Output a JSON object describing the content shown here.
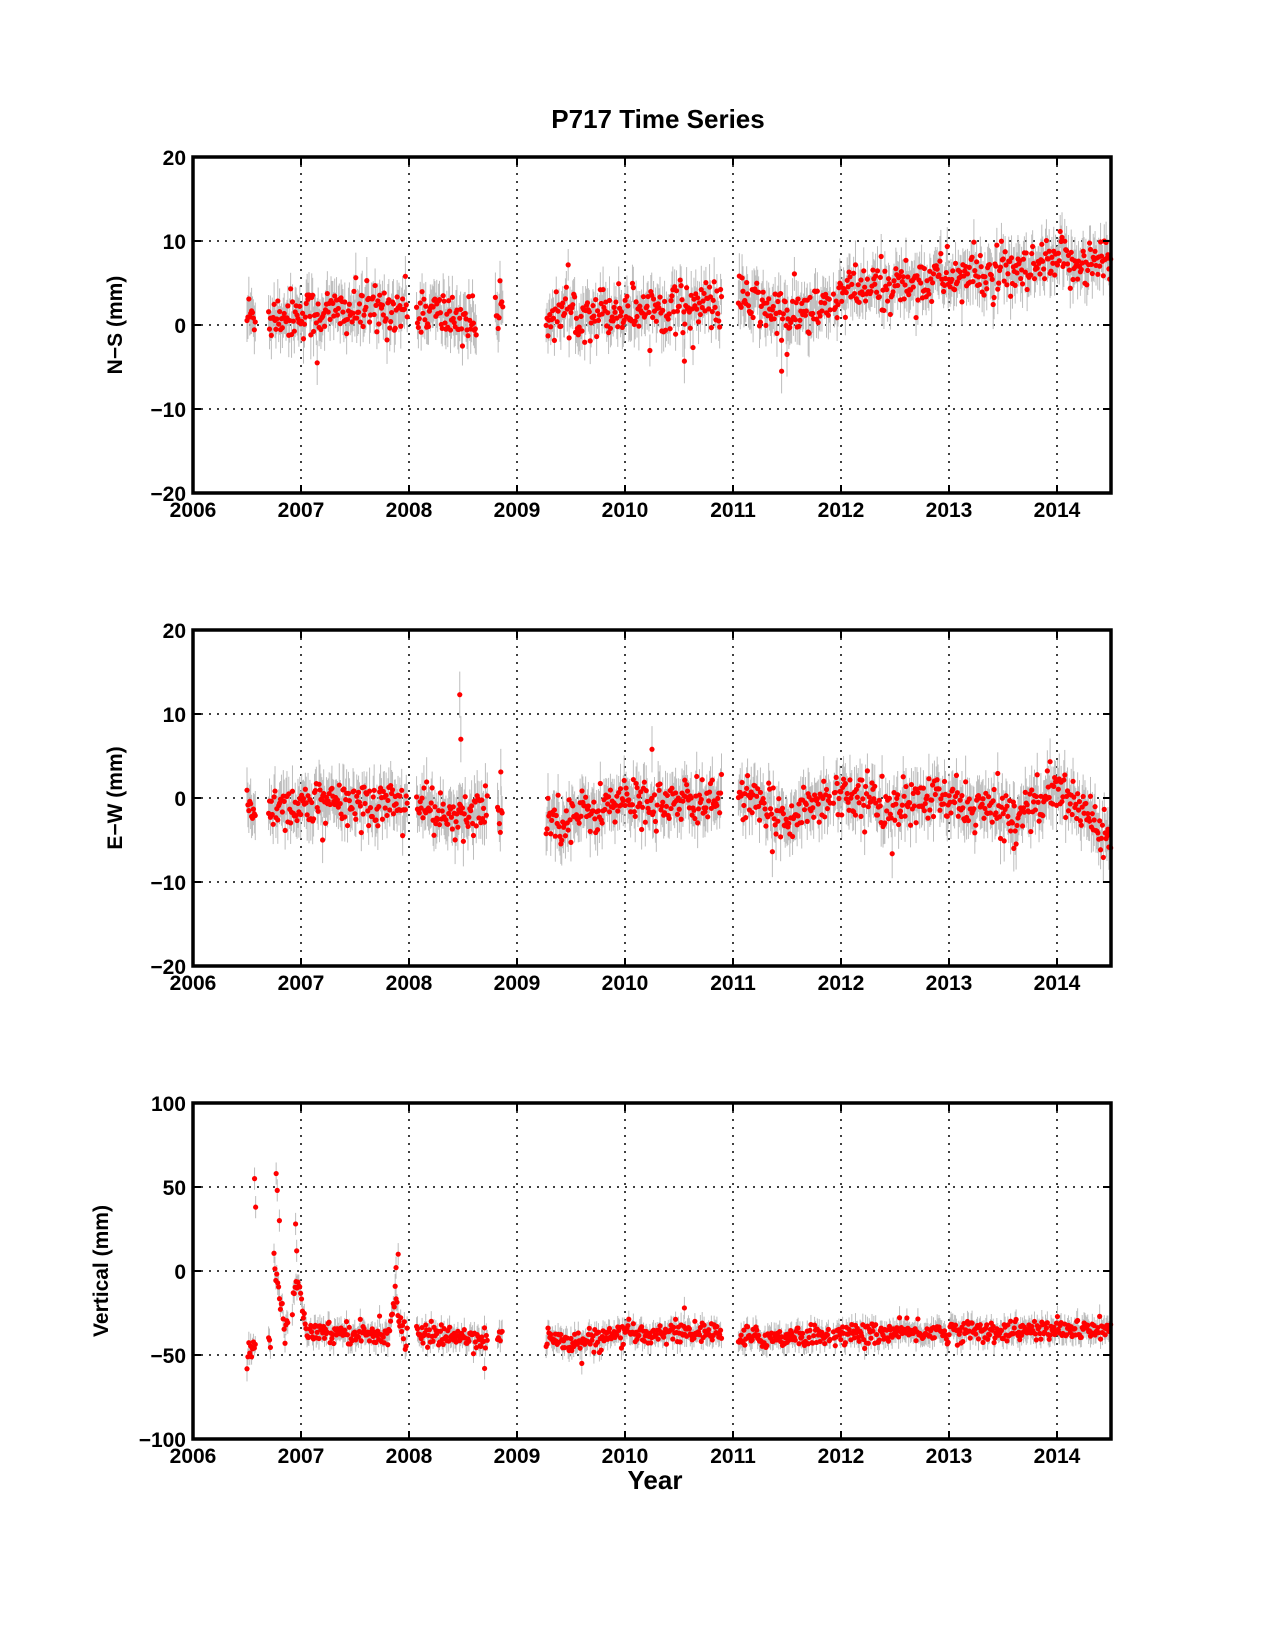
{
  "figure": {
    "title": "P717 Time Series",
    "xlabel": "Year",
    "colors": {
      "points": "#ff0000",
      "errorbars": "#bdbdbd",
      "axes": "#000000",
      "grid": "#000000"
    }
  },
  "chart_data": [
    {
      "type": "scatter",
      "title": "P717 Time Series",
      "xlabel": "",
      "ylabel": "N−S (mm)",
      "xlim": [
        2006,
        2014.5
      ],
      "ylim": [
        -20,
        20
      ],
      "xticks": [
        "2006",
        "2007",
        "2008",
        "2009",
        "2010",
        "2011",
        "2012",
        "2013",
        "2014"
      ],
      "yticks": [
        "−20",
        "−10",
        "0",
        "10",
        "20"
      ],
      "grid": true,
      "error_bars": true,
      "series": [
        {
          "segments": [
            [
              2006.5,
              2006.58
            ],
            [
              2006.7,
              2007.99
            ],
            [
              2008.07,
              2008.63
            ],
            [
              2008.8,
              2008.87
            ],
            [
              2009.27,
              2010.9
            ],
            [
              2011.05,
              2011.9
            ],
            [
              2011.93,
              2014.5
            ]
          ],
          "trend": [
            [
              2006.5,
              1.0
            ],
            [
              2008.0,
              2.0
            ],
            [
              2008.6,
              0.5
            ],
            [
              2009.3,
              1.3
            ],
            [
              2010.0,
              1.9
            ],
            [
              2010.9,
              2.5
            ],
            [
              2011.1,
              3.0
            ],
            [
              2011.5,
              1.0
            ],
            [
              2011.9,
              2.0
            ],
            [
              2012.0,
              3.7
            ],
            [
              2013.0,
              5.8
            ],
            [
              2013.7,
              6.0
            ],
            [
              2014.0,
              7.5
            ],
            [
              2014.5,
              7.5
            ]
          ],
          "scatter_sd": 1.5,
          "error_sd": 2.4,
          "outliers": [
            [
              2007.15,
              -4.5
            ],
            [
              2010.55,
              -4.3
            ],
            [
              2011.45,
              -5.5
            ],
            [
              2011.5,
              -3.5
            ]
          ]
        }
      ]
    },
    {
      "type": "scatter",
      "title": "",
      "xlabel": "",
      "ylabel": "E−W (mm)",
      "xlim": [
        2006,
        2014.5
      ],
      "ylim": [
        -20,
        20
      ],
      "xticks": [
        "2006",
        "2007",
        "2008",
        "2009",
        "2010",
        "2011",
        "2012",
        "2013",
        "2014"
      ],
      "yticks": [
        "−20",
        "−10",
        "0",
        "10",
        "20"
      ],
      "grid": true,
      "error_bars": true,
      "series": [
        {
          "segments": [
            [
              2006.5,
              2006.58
            ],
            [
              2006.7,
              2007.99
            ],
            [
              2008.07,
              2008.73
            ],
            [
              2008.82,
              2008.87
            ],
            [
              2009.27,
              2010.9
            ],
            [
              2011.05,
              2011.9
            ],
            [
              2011.93,
              2014.5
            ]
          ],
          "trend": [
            [
              2006.5,
              -1.0
            ],
            [
              2008.0,
              -0.5
            ],
            [
              2008.1,
              -1.0
            ],
            [
              2008.45,
              -3.0
            ],
            [
              2008.7,
              -1.0
            ],
            [
              2009.3,
              -2.5
            ],
            [
              2009.6,
              -2.0
            ],
            [
              2010.0,
              -0.3
            ],
            [
              2010.6,
              -0.8
            ],
            [
              2010.9,
              0.5
            ],
            [
              2011.05,
              0.5
            ],
            [
              2011.4,
              -2.5
            ],
            [
              2011.9,
              0.0
            ],
            [
              2011.95,
              1.0
            ],
            [
              2012.2,
              0.0
            ],
            [
              2012.5,
              -1.5
            ],
            [
              2012.8,
              0.0
            ],
            [
              2013.2,
              -1.0
            ],
            [
              2013.6,
              -2.0
            ],
            [
              2014.0,
              1.0
            ],
            [
              2014.3,
              -2.0
            ],
            [
              2014.5,
              -4.5
            ]
          ],
          "scatter_sd": 1.4,
          "error_sd": 2.5,
          "outliers": [
            [
              2008.47,
              12.3
            ],
            [
              2008.48,
              7.0
            ],
            [
              2008.85,
              3.1
            ],
            [
              2010.25,
              5.8
            ],
            [
              2007.2,
              -5.0
            ],
            [
              2013.6,
              -6.0
            ]
          ]
        }
      ]
    },
    {
      "type": "scatter",
      "title": "",
      "xlabel": "Year",
      "ylabel": "Vertical (mm)",
      "xlim": [
        2006,
        2014.5
      ],
      "ylim": [
        -100,
        100
      ],
      "xticks": [
        "2006",
        "2007",
        "2008",
        "2009",
        "2010",
        "2011",
        "2012",
        "2013",
        "2014"
      ],
      "yticks": [
        "−100",
        "−50",
        "0",
        "50",
        "100"
      ],
      "grid": true,
      "error_bars": true,
      "series": [
        {
          "segments": [
            [
              2006.5,
              2006.58
            ],
            [
              2006.7,
              2006.72
            ],
            [
              2006.75,
              2006.88
            ],
            [
              2006.92,
              2007.99
            ],
            [
              2008.07,
              2008.73
            ],
            [
              2008.82,
              2008.87
            ],
            [
              2009.27,
              2010.9
            ],
            [
              2011.05,
              2011.9
            ],
            [
              2011.93,
              2014.5
            ]
          ],
          "trend": [
            [
              2006.5,
              -50
            ],
            [
              2006.58,
              -45
            ],
            [
              2006.7,
              -40
            ],
            [
              2006.72,
              -40
            ],
            [
              2006.75,
              10
            ],
            [
              2006.85,
              -35
            ],
            [
              2006.92,
              -20
            ],
            [
              2006.98,
              -5
            ],
            [
              2007.05,
              -35
            ],
            [
              2007.8,
              -38
            ],
            [
              2007.87,
              -15
            ],
            [
              2007.93,
              -35
            ],
            [
              2008.0,
              -38
            ],
            [
              2008.1,
              -38
            ],
            [
              2008.73,
              -40
            ],
            [
              2009.3,
              -40
            ],
            [
              2009.5,
              -43
            ],
            [
              2010.0,
              -38
            ],
            [
              2010.5,
              -36
            ],
            [
              2010.9,
              -37
            ],
            [
              2011.1,
              -40
            ],
            [
              2011.9,
              -38
            ],
            [
              2012.0,
              -38
            ],
            [
              2013.0,
              -36
            ],
            [
              2014.5,
              -35
            ]
          ],
          "scatter_sd": 3.2,
          "error_sd": 6.0,
          "outliers": [
            [
              2006.57,
              55
            ],
            [
              2006.58,
              38
            ],
            [
              2006.77,
              58
            ],
            [
              2006.78,
              48
            ],
            [
              2006.8,
              30
            ],
            [
              2006.95,
              28
            ],
            [
              2006.96,
              12
            ],
            [
              2007.9,
              10
            ],
            [
              2007.88,
              2
            ],
            [
              2008.7,
              -58
            ],
            [
              2010.55,
              -22
            ],
            [
              2009.6,
              -55
            ]
          ]
        }
      ]
    }
  ]
}
